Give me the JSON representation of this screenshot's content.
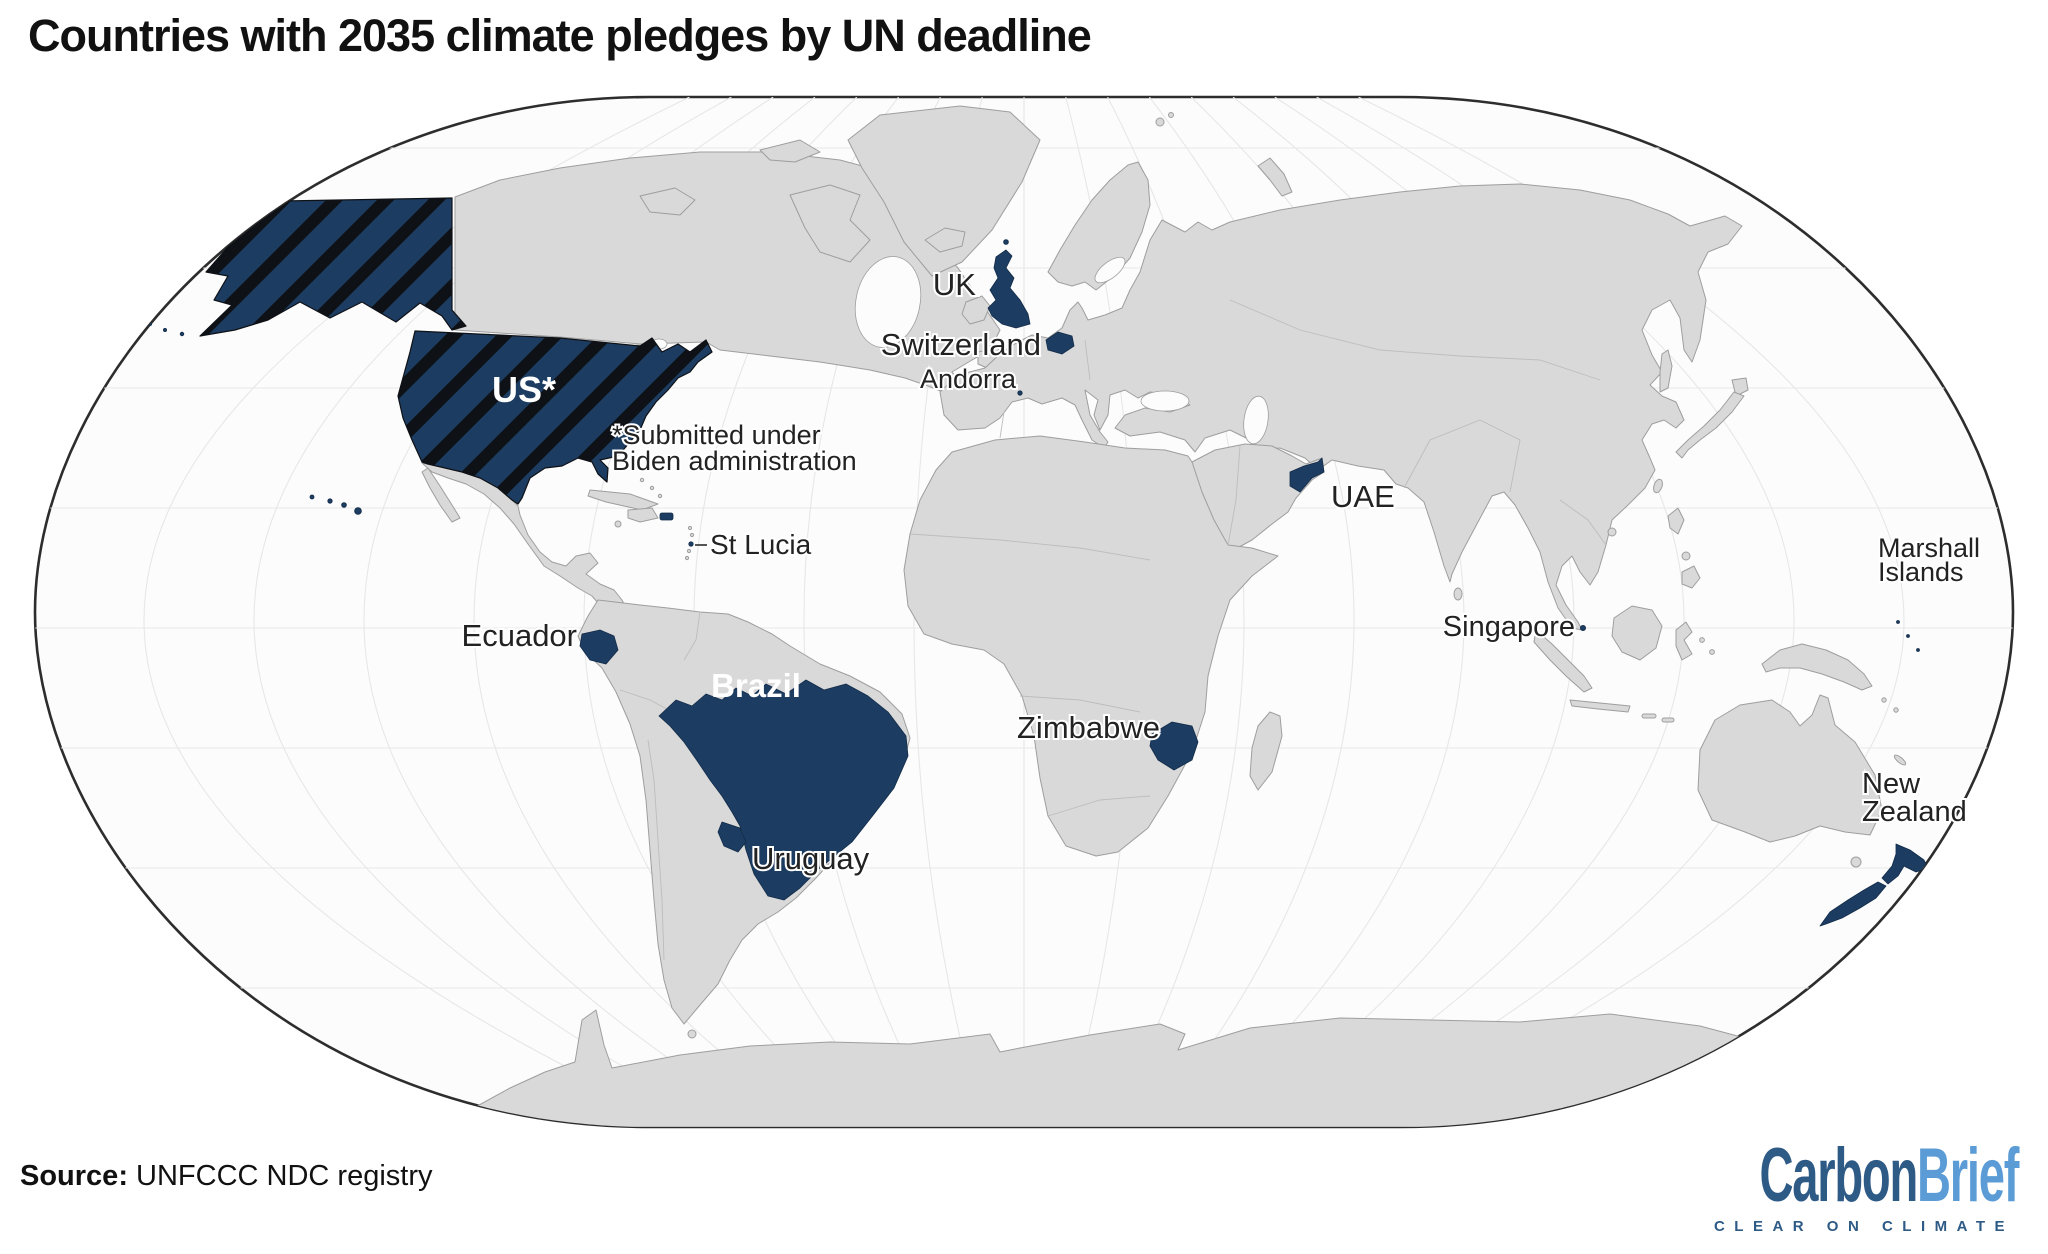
{
  "title": "Countries with 2035 climate pledges by UN deadline",
  "map": {
    "labels": {
      "us": "US*",
      "us_note_1": "*Submitted under",
      "us_note_2": "Biden administration",
      "uk": "UK",
      "switzerland": "Switzerland",
      "andorra": "Andorra",
      "uae": "UAE",
      "st_lucia": "St Lucia",
      "ecuador": "Ecuador",
      "brazil": "Brazil",
      "uruguay": "Uruguay",
      "zimbabwe": "Zimbabwe",
      "singapore": "Singapore",
      "marshall_islands_1": "Marshall",
      "marshall_islands_2": "Islands",
      "new_zealand_1": "New",
      "new_zealand_2": "Zealand"
    },
    "highlighted_countries": [
      "US",
      "UK",
      "Switzerland",
      "Andorra",
      "St Lucia",
      "UAE",
      "Ecuador",
      "Brazil",
      "Uruguay",
      "Zimbabwe",
      "Singapore",
      "Marshall Islands",
      "New Zealand"
    ],
    "us_hatch_meaning": "Submitted under Biden administration",
    "colors": {
      "highlight": "#1d3c61",
      "highlight_border": "#122c49",
      "hatch": "#0e1116",
      "land": "#d9d9d9",
      "land_border": "#9e9e9e",
      "ocean": "#fcfcfc",
      "graticule": "#e7e7e7",
      "outline": "#2d2d2d",
      "logo_dark": "#2e5a86",
      "logo_light": "#5c9cd6"
    }
  },
  "source": {
    "label": "Source:",
    "text": "UNFCCC NDC registry"
  },
  "logo": {
    "carbon": "Carbon",
    "brief": "Brief",
    "tagline": "CLEAR ON CLIMATE"
  }
}
